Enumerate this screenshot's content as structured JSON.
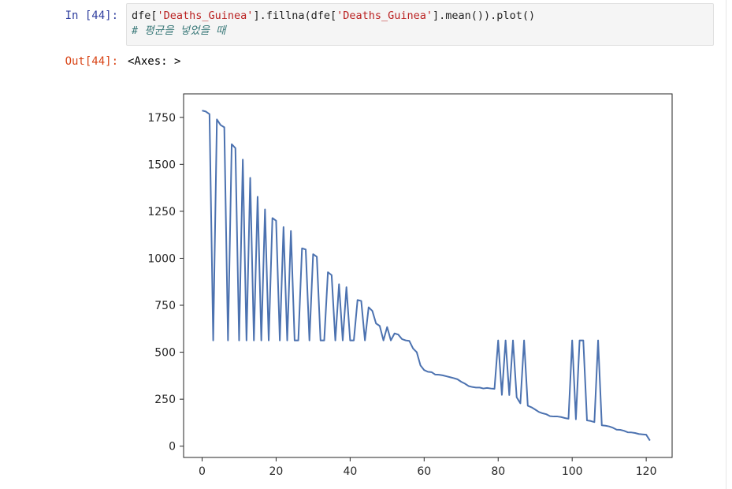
{
  "cell_in": {
    "prompt": "In [44]:",
    "code": {
      "p1": "dfe[",
      "s1": "'Deaths_Guinea'",
      "p2": "].fillna(dfe[",
      "s2": "'Deaths_Guinea'",
      "p3": "].mean()).plot()",
      "comment": "# 평균을 넣었을 때"
    }
  },
  "cell_out": {
    "prompt": "Out[44]:",
    "text": "<Axes: >"
  },
  "chart_data": {
    "type": "line",
    "xlim": [
      -5,
      127
    ],
    "ylim": [
      -60,
      1875
    ],
    "x_ticks": [
      0,
      20,
      40,
      60,
      80,
      100,
      120
    ],
    "y_ticks": [
      0,
      250,
      500,
      750,
      1000,
      1250,
      1500,
      1750
    ],
    "series": [
      {
        "color": "#4c72b0",
        "points": [
          [
            0,
            1786
          ],
          [
            1,
            1781
          ],
          [
            2,
            1767
          ],
          [
            3,
            563
          ],
          [
            4,
            1739
          ],
          [
            5,
            1709
          ],
          [
            6,
            1697
          ],
          [
            7,
            563
          ],
          [
            8,
            1607
          ],
          [
            9,
            1586
          ],
          [
            10,
            563
          ],
          [
            11,
            1525
          ],
          [
            12,
            563
          ],
          [
            13,
            1428
          ],
          [
            14,
            563
          ],
          [
            15,
            1327
          ],
          [
            16,
            563
          ],
          [
            17,
            1260
          ],
          [
            18,
            563
          ],
          [
            19,
            1214
          ],
          [
            20,
            1200
          ],
          [
            21,
            563
          ],
          [
            22,
            1166
          ],
          [
            23,
            563
          ],
          [
            24,
            1145
          ],
          [
            25,
            563
          ],
          [
            26,
            563
          ],
          [
            27,
            1053
          ],
          [
            28,
            1047
          ],
          [
            29,
            563
          ],
          [
            30,
            1022
          ],
          [
            31,
            1008
          ],
          [
            32,
            563
          ],
          [
            33,
            563
          ],
          [
            34,
            926
          ],
          [
            35,
            910
          ],
          [
            36,
            563
          ],
          [
            37,
            862
          ],
          [
            38,
            563
          ],
          [
            39,
            846
          ],
          [
            40,
            563
          ],
          [
            41,
            563
          ],
          [
            42,
            778
          ],
          [
            43,
            773
          ],
          [
            44,
            563
          ],
          [
            45,
            739
          ],
          [
            46,
            720
          ],
          [
            47,
            653
          ],
          [
            48,
            640
          ],
          [
            49,
            563
          ],
          [
            50,
            634
          ],
          [
            51,
            563
          ],
          [
            52,
            600
          ],
          [
            53,
            594
          ],
          [
            54,
            570
          ],
          [
            55,
            563
          ],
          [
            56,
            560
          ],
          [
            57,
            520
          ],
          [
            58,
            500
          ],
          [
            59,
            430
          ],
          [
            60,
            405
          ],
          [
            61,
            396
          ],
          [
            62,
            394
          ],
          [
            63,
            381
          ],
          [
            64,
            380
          ],
          [
            65,
            377
          ],
          [
            66,
            372
          ],
          [
            67,
            367
          ],
          [
            68,
            362
          ],
          [
            69,
            356
          ],
          [
            70,
            343
          ],
          [
            71,
            333
          ],
          [
            72,
            320
          ],
          [
            73,
            315
          ],
          [
            74,
            312
          ],
          [
            75,
            312
          ],
          [
            76,
            307
          ],
          [
            77,
            310
          ],
          [
            78,
            307
          ],
          [
            79,
            305
          ],
          [
            80,
            563
          ],
          [
            81,
            273
          ],
          [
            82,
            563
          ],
          [
            83,
            272
          ],
          [
            84,
            563
          ],
          [
            85,
            260
          ],
          [
            86,
            228
          ],
          [
            87,
            563
          ],
          [
            88,
            215
          ],
          [
            89,
            207
          ],
          [
            90,
            195
          ],
          [
            91,
            182
          ],
          [
            92,
            175
          ],
          [
            93,
            170
          ],
          [
            94,
            160
          ],
          [
            95,
            158
          ],
          [
            96,
            158
          ],
          [
            97,
            155
          ],
          [
            98,
            150
          ],
          [
            99,
            146
          ],
          [
            100,
            563
          ],
          [
            101,
            143
          ],
          [
            102,
            563
          ],
          [
            103,
            563
          ],
          [
            104,
            137
          ],
          [
            105,
            134
          ],
          [
            106,
            128
          ],
          [
            107,
            563
          ],
          [
            108,
            111
          ],
          [
            109,
            109
          ],
          [
            110,
            105
          ],
          [
            111,
            98
          ],
          [
            112,
            88
          ],
          [
            113,
            87
          ],
          [
            114,
            82
          ],
          [
            115,
            74
          ],
          [
            116,
            73
          ],
          [
            117,
            70
          ],
          [
            118,
            65
          ],
          [
            119,
            63
          ],
          [
            120,
            61
          ],
          [
            121,
            30
          ]
        ]
      }
    ]
  }
}
